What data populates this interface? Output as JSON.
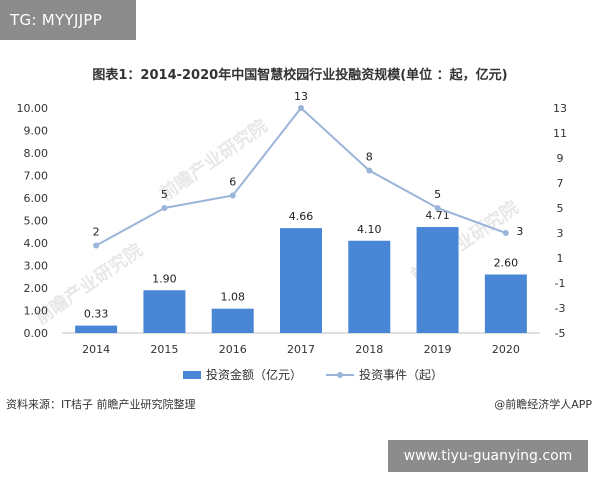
{
  "tag": "TG: MYYJJPP",
  "site": "www.tiyu-guanying.com",
  "watermark": "前瞻产业研究院",
  "source": "资料来源：IT桔子 前瞻产业研究院整理",
  "credit": "@前瞻经济学人APP",
  "colors": {
    "bar": "#4a86d6",
    "line": "#9bb4d9"
  },
  "chart_data": {
    "type": "bar",
    "title": "图表1：2014-2020年中国智慧校园行业投融资规模(单位 ：起，亿元)",
    "categories": [
      "2014",
      "2015",
      "2016",
      "2017",
      "2018",
      "2019",
      "2020"
    ],
    "series": [
      {
        "name": "投资金额（亿元）",
        "type": "bar",
        "axis": "left",
        "values": [
          0.33,
          1.9,
          1.08,
          4.66,
          4.1,
          4.71,
          2.6
        ],
        "labels": [
          "0.33",
          "1.90",
          "1.08",
          "4.66",
          "4.10",
          "4.71",
          "2.60"
        ]
      },
      {
        "name": "投资事件（起）",
        "type": "line",
        "axis": "right",
        "values": [
          2,
          5,
          6,
          13,
          8,
          5,
          3
        ],
        "labels": [
          "2",
          "5",
          "6",
          "13",
          "8",
          "5",
          "3"
        ]
      }
    ],
    "ylim_left": [
      0,
      10
    ],
    "yticks_left": [
      "0.00",
      "1.00",
      "2.00",
      "3.00",
      "4.00",
      "5.00",
      "6.00",
      "7.00",
      "8.00",
      "9.00",
      "10.00"
    ],
    "ylim_right": [
      -5,
      13
    ],
    "yticks_right": [
      "-5",
      "-3",
      "-1",
      "1",
      "3",
      "5",
      "7",
      "9",
      "11",
      "13"
    ],
    "legend_position": "bottom",
    "grid": false
  }
}
